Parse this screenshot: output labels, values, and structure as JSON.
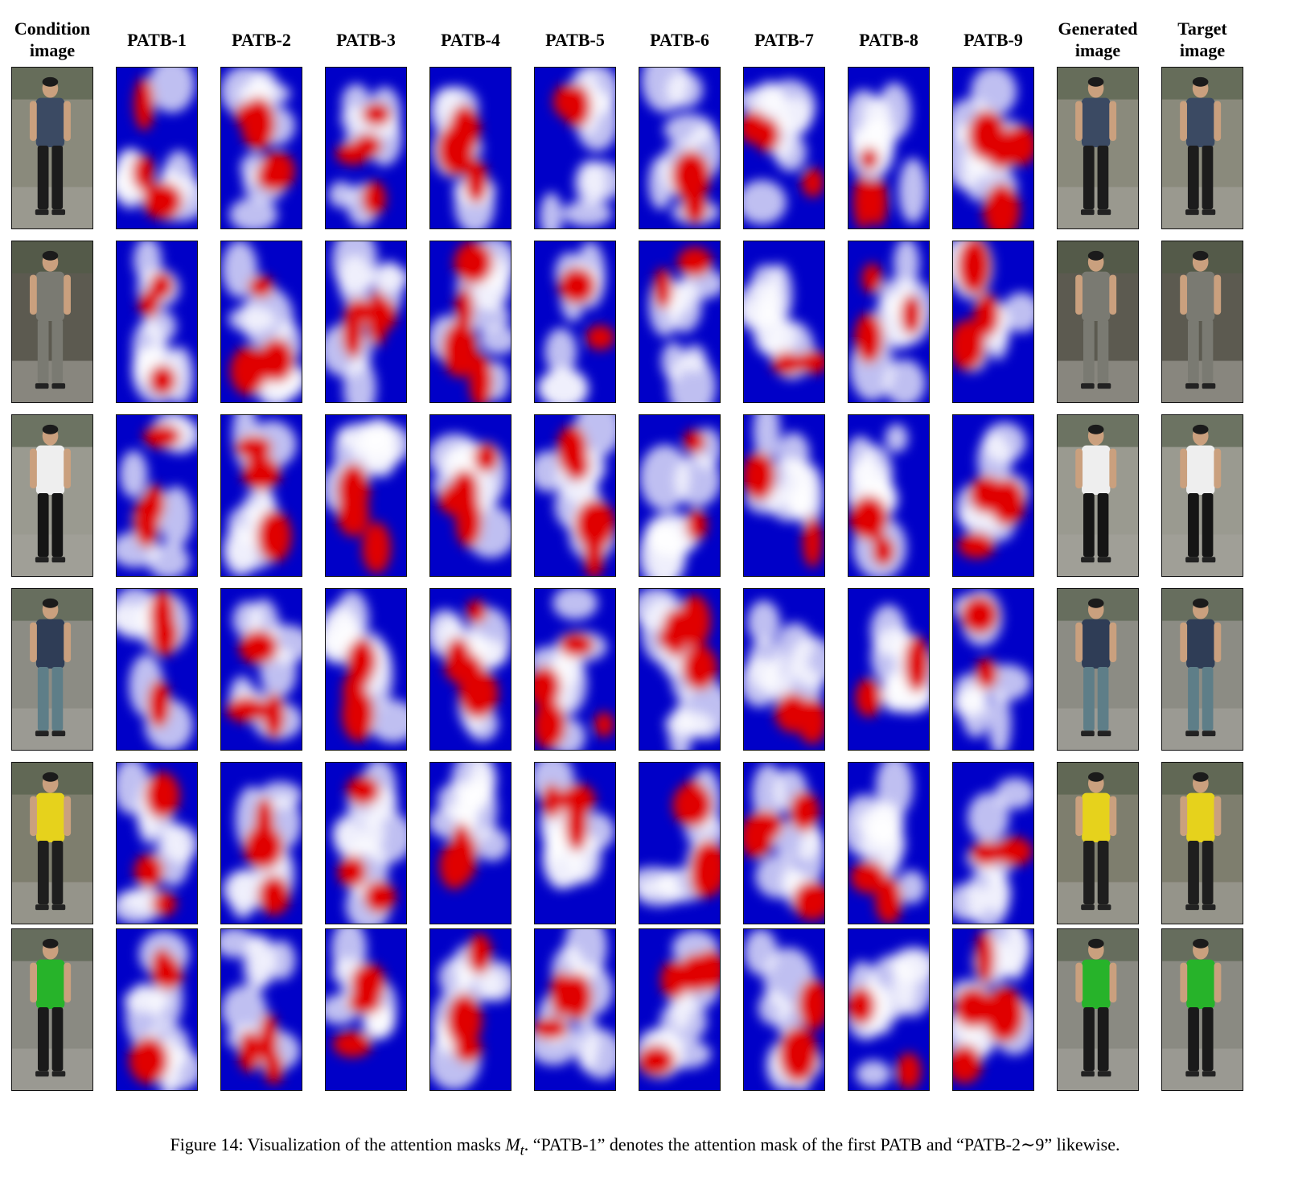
{
  "columns": [
    {
      "key": "condition",
      "label": "Condition image",
      "kind": "photo"
    },
    {
      "key": "patb1",
      "label": "PATB-1",
      "kind": "mask"
    },
    {
      "key": "patb2",
      "label": "PATB-2",
      "kind": "mask"
    },
    {
      "key": "patb3",
      "label": "PATB-3",
      "kind": "mask"
    },
    {
      "key": "patb4",
      "label": "PATB-4",
      "kind": "mask"
    },
    {
      "key": "patb5",
      "label": "PATB-5",
      "kind": "mask"
    },
    {
      "key": "patb6",
      "label": "PATB-6",
      "kind": "mask"
    },
    {
      "key": "patb7",
      "label": "PATB-7",
      "kind": "mask"
    },
    {
      "key": "patb8",
      "label": "PATB-8",
      "kind": "mask"
    },
    {
      "key": "patb9",
      "label": "PATB-9",
      "kind": "mask"
    },
    {
      "key": "generated",
      "label": "Generated image",
      "kind": "photo"
    },
    {
      "key": "target",
      "label": "Target image",
      "kind": "photo"
    }
  ],
  "rows": [
    {
      "shirt": "#3b4a63",
      "pants": "#1c1c1c",
      "bg": "#8a8a7c"
    },
    {
      "shirt": "#7a7a72",
      "pants": "#7a7a72",
      "bg": "#5c5a50"
    },
    {
      "shirt": "#eeeeee",
      "pants": "#151515",
      "bg": "#9a9a90"
    },
    {
      "shirt": "#2f3d56",
      "pants": "#5e7e88",
      "bg": "#8c8c84"
    },
    {
      "shirt": "#e6d21c",
      "pants": "#1e1e1e",
      "bg": "#7e7e6e"
    },
    {
      "shirt": "#27b32a",
      "pants": "#1a1a1a",
      "bg": "#8a8a82"
    }
  ],
  "colors": {
    "mask_low": "#0000c8",
    "mask_high": "#e00000",
    "mask_mid": "#ffffff"
  },
  "caption": {
    "prefix": "Figure 14: Visualization of the attention masks ",
    "math": "M",
    "math_sub": "t",
    "suffix": ". “PATB-1” denotes the attention mask of the first PATB and “PATB-2∼9” likewise."
  }
}
